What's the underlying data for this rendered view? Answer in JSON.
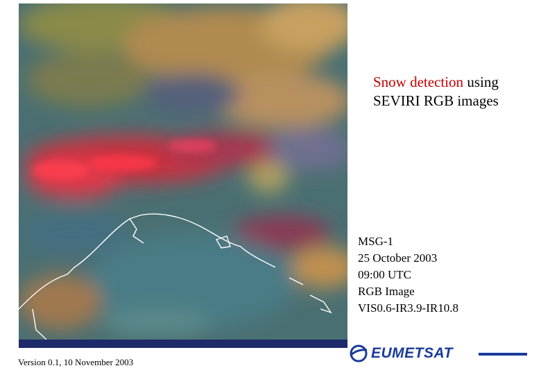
{
  "title": {
    "highlight": "Snow detection",
    "rest": "using",
    "line2": "SEVIRI RGB images"
  },
  "info": [
    "MSG-1",
    "25 October 2003",
    "09:00 UTC",
    "RGB Image",
    "VIS0.6-IR3.9-IR10.8"
  ],
  "footer": "Version 0.1, 10 November 2003",
  "logo": "EUMETSAT"
}
